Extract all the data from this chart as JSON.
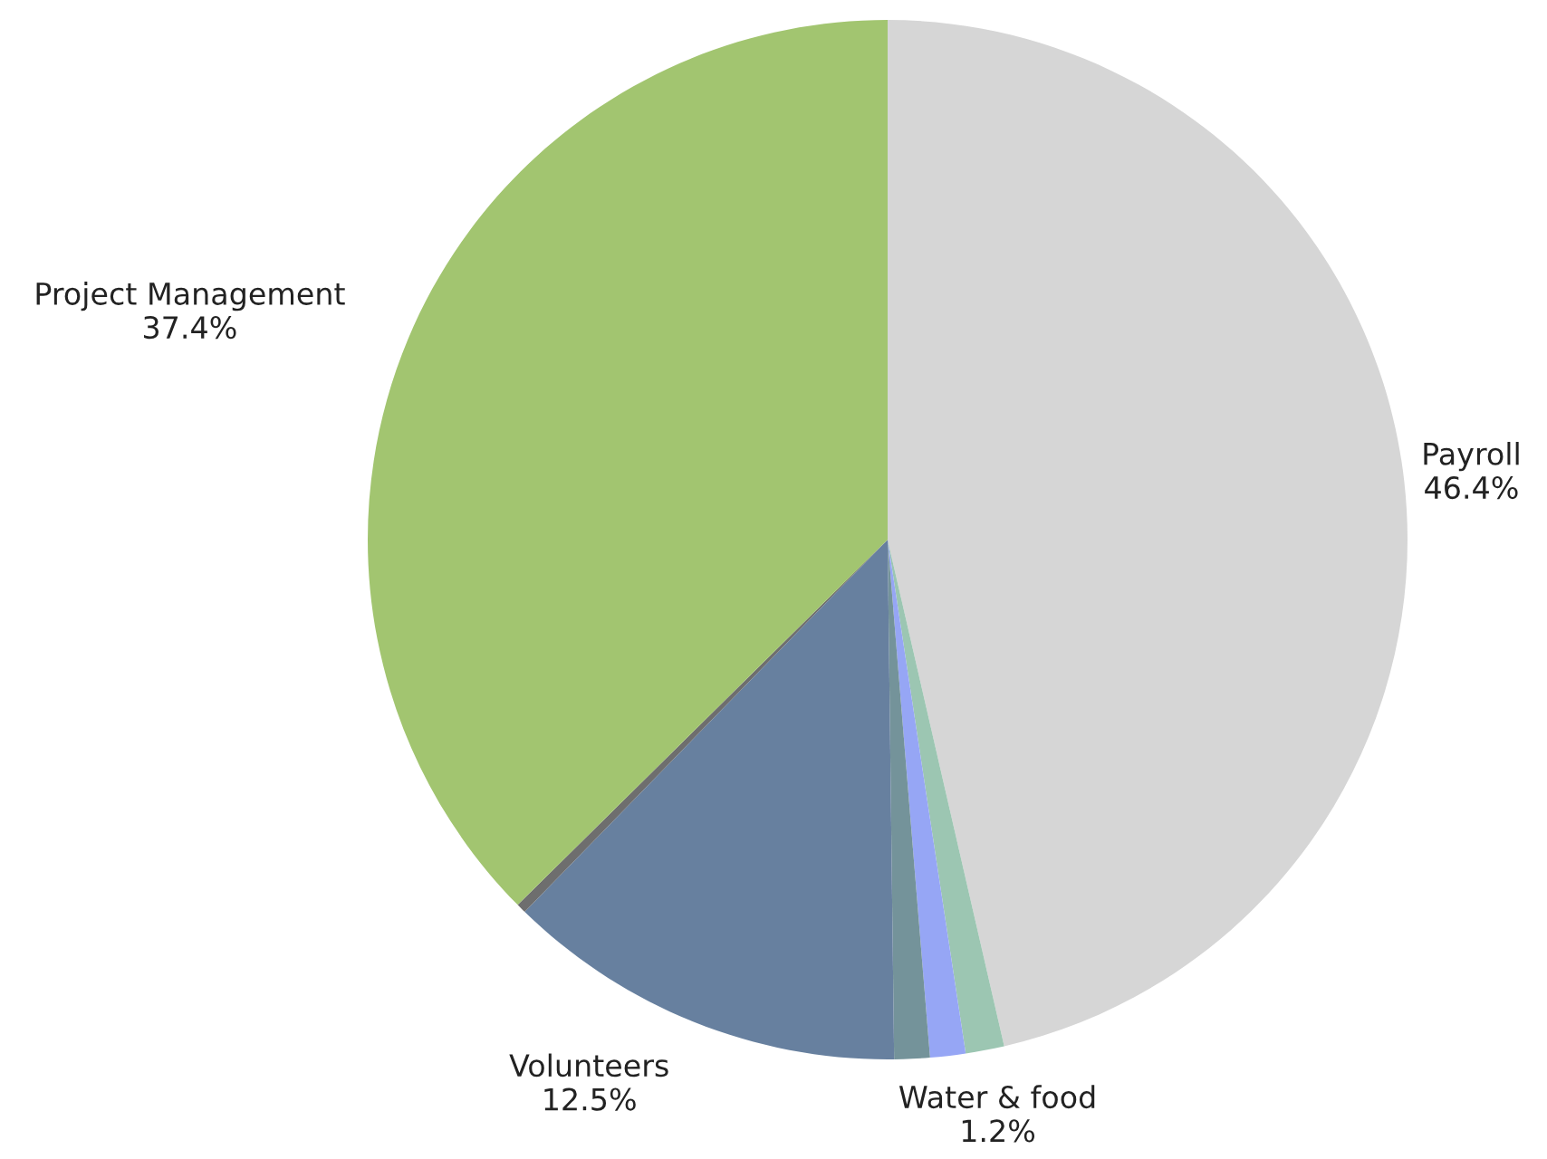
{
  "chart_data": {
    "type": "pie",
    "categories": [
      "Payroll",
      "Water & food",
      null,
      null,
      "Volunteers",
      null,
      "Project Management"
    ],
    "values": [
      46.4,
      1.2,
      1.1,
      1.1,
      12.5,
      0.3,
      37.4
    ],
    "colors": [
      "#d6d6d6",
      "#9cc6b2",
      "#96a6f5",
      "#74939a",
      "#67809f",
      "#6e6e6e",
      "#a2c570"
    ],
    "value_labels": [
      "46.4%",
      "1.2%",
      null,
      null,
      "12.5%",
      null,
      "37.4%"
    ]
  }
}
